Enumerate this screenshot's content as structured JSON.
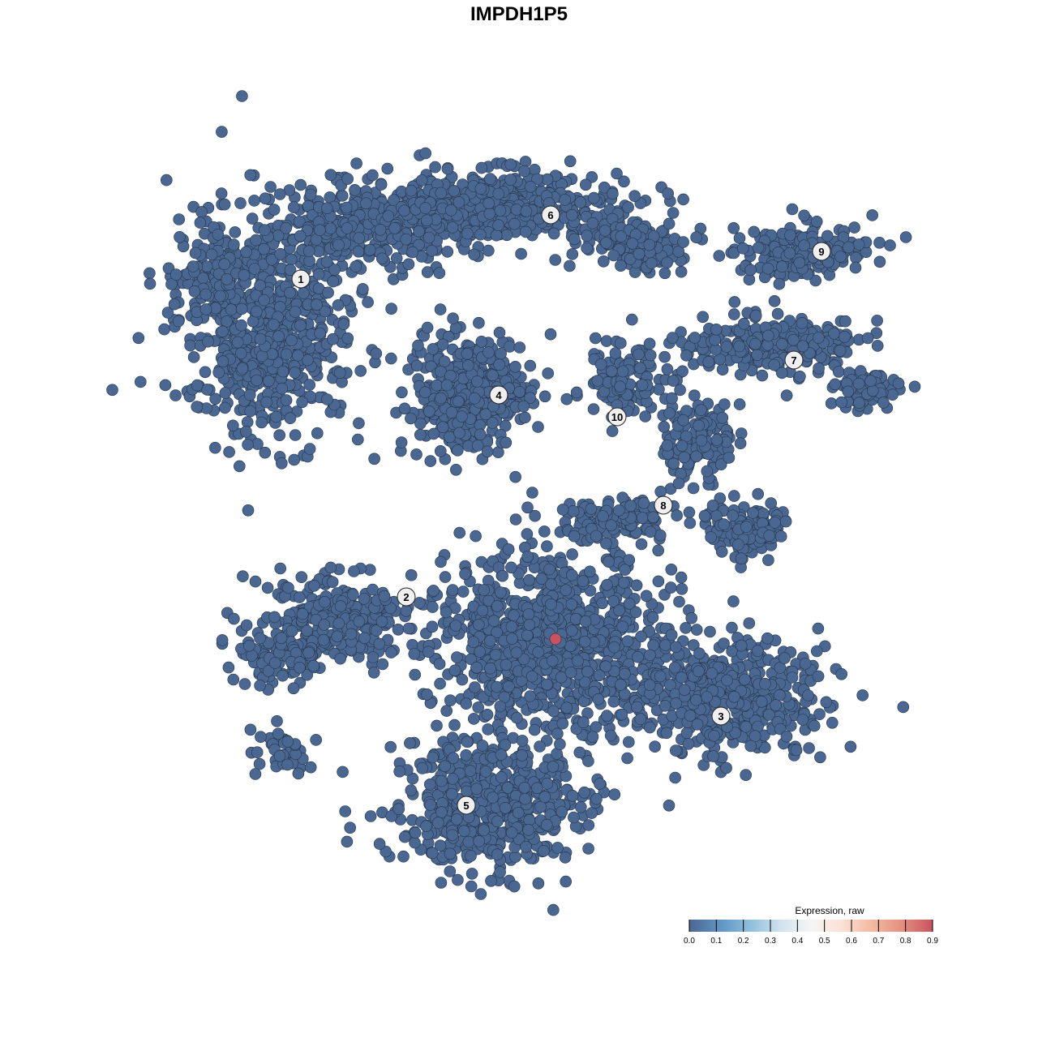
{
  "chart_data": {
    "type": "scatter",
    "title": "IMPDH1P5",
    "xlabel": "",
    "ylabel": "",
    "grid": false,
    "axes_visible": false,
    "point_fill_low": "#4a6791",
    "point_stroke": "#25344a",
    "cluster_labels": [
      "1",
      "2",
      "3",
      "4",
      "5",
      "6",
      "7",
      "8",
      "9",
      "10"
    ],
    "expression_summary": {
      "baseline_value": 0.0,
      "highlighted_cell_value": 0.9,
      "highlighted_cell_cluster": ""
    },
    "colorbar": {
      "title": "Expression, raw",
      "range": [
        0.0,
        0.9
      ],
      "ticks": [
        "0.0",
        "0.1",
        "0.2",
        "0.3",
        "0.4",
        "0.5",
        "0.6",
        "0.7",
        "0.8",
        "0.9"
      ],
      "colors": [
        "#4a6791",
        "#5f93c3",
        "#8fbfda",
        "#cfe3ee",
        "#f5f5f5",
        "#fbe2d6",
        "#f4b9a1",
        "#e48f80",
        "#c9525f"
      ],
      "placement": "bottom-right"
    }
  }
}
